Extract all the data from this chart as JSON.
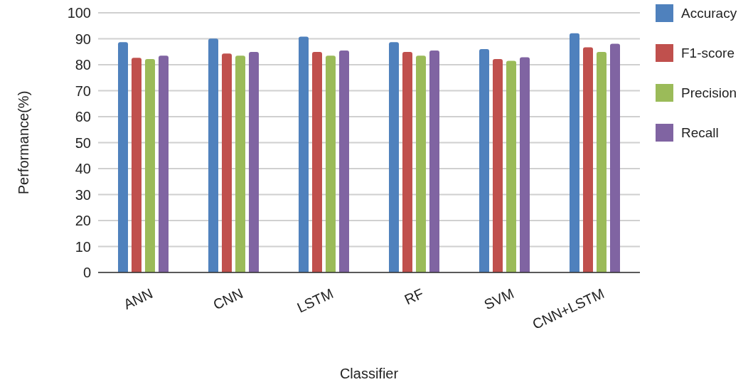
{
  "chart_data": {
    "type": "bar",
    "xlabel": "Classifier",
    "ylabel": "Performance(%)",
    "categories": [
      "ANN",
      "CNN",
      "LSTM",
      "RF",
      "SVM",
      "CNN+LSTM"
    ],
    "series": [
      {
        "name": "Accuracy",
        "color": "#4f81bd",
        "values": [
          88.7,
          90.1,
          90.8,
          88.7,
          86,
          92.1
        ]
      },
      {
        "name": "F1-score",
        "color": "#c0504d",
        "values": [
          82.7,
          84.3,
          84.9,
          84.9,
          82.2,
          86.7
        ]
      },
      {
        "name": "Precision",
        "color": "#9bbb59",
        "values": [
          82.2,
          83.5,
          83.5,
          83.5,
          81.5,
          84.9
        ]
      },
      {
        "name": "Recall",
        "color": "#8064a2",
        "values": [
          83.5,
          84.9,
          85.5,
          85.5,
          82.9,
          88.1
        ]
      }
    ],
    "ylim": [
      0,
      100
    ],
    "yticks": [
      0,
      10,
      20,
      30,
      40,
      50,
      60,
      70,
      80,
      90,
      100
    ],
    "grid": "y",
    "legend": "right"
  }
}
